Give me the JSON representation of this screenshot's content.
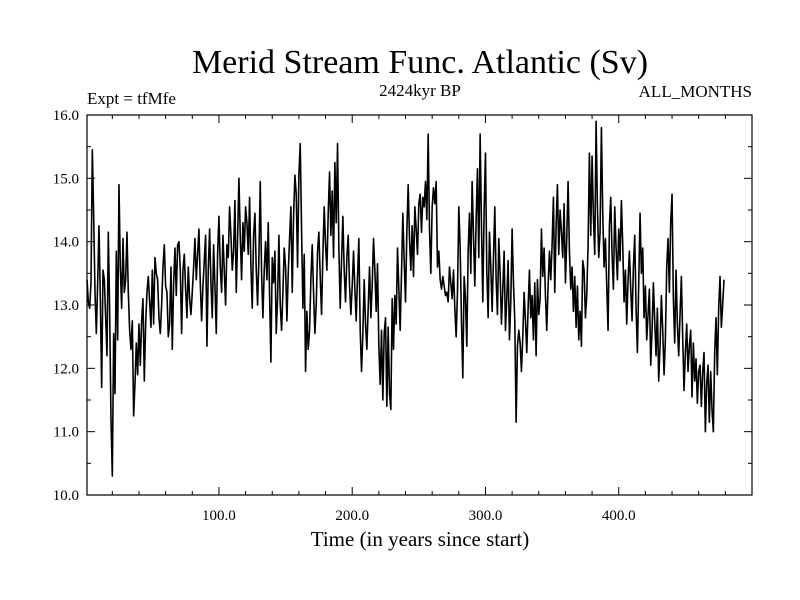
{
  "chart_data": {
    "type": "line",
    "title": "Merid Stream Func. Atlantic (Sv)",
    "subtitle_left": "Expt = tfMfe",
    "subtitle_center": "2424kyr BP",
    "subtitle_right": "ALL_MONTHS",
    "xlabel": "Time (in years since start)",
    "ylabel": "",
    "xlim": [
      1,
      500
    ],
    "ylim": [
      10.0,
      16.0
    ],
    "x_ticks": [
      100,
      200,
      300,
      400
    ],
    "x_tick_labels": [
      "100.0",
      "200.0",
      "300.0",
      "400.0"
    ],
    "y_ticks": [
      10,
      11,
      12,
      13,
      14,
      15,
      16
    ],
    "y_tick_labels": [
      "10.0",
      "11.0",
      "12.0",
      "13.0",
      "14.0",
      "15.0",
      "16.0"
    ],
    "grid": false,
    "legend": "none",
    "series": [
      {
        "name": "Merid Stream Func. Atlantic",
        "x_start": 1,
        "x_step": 1,
        "values": [
          13.4,
          13.05,
          12.95,
          13.35,
          15.45,
          14.42,
          13.2,
          12.55,
          13.35,
          14.25,
          13.1,
          11.7,
          13.55,
          13.4,
          12.8,
          12.2,
          14.15,
          12.9,
          11.2,
          10.3,
          12.55,
          11.6,
          13.85,
          12.45,
          14.9,
          13.6,
          12.95,
          14.05,
          13.2,
          13.4,
          14.15,
          13.2,
          12.6,
          12.3,
          12.75,
          11.25,
          11.75,
          12.4,
          11.9,
          12.7,
          12.05,
          12.75,
          13.1,
          11.8,
          12.7,
          13.2,
          13.45,
          13.05,
          12.65,
          13.55,
          12.7,
          13.75,
          13.5,
          13.4,
          12.8,
          12.55,
          13.0,
          13.6,
          13.95,
          13.3,
          13.2,
          12.5,
          12.7,
          13.6,
          12.3,
          13.35,
          13.9,
          13.15,
          13.95,
          14.0,
          13.55,
          12.55,
          13.55,
          13.8,
          13.25,
          12.8,
          13.6,
          13.1,
          12.85,
          13.2,
          13.6,
          14.05,
          13.4,
          13.8,
          14.2,
          13.35,
          12.75,
          13.3,
          13.7,
          14.1,
          12.35,
          13.55,
          14.2,
          13.35,
          12.8,
          13.95,
          13.3,
          12.55,
          13.8,
          14.4,
          13.6,
          13.2,
          14.1,
          13.55,
          13.0,
          13.95,
          13.75,
          14.55,
          14.1,
          13.55,
          13.85,
          14.65,
          13.2,
          14.05,
          15.0,
          14.1,
          13.4,
          14.3,
          13.85,
          14.55,
          14.3,
          13.8,
          14.7,
          13.6,
          12.95,
          14.1,
          14.45,
          13.55,
          13.0,
          13.75,
          14.95,
          13.5,
          12.8,
          13.55,
          14.0,
          13.4,
          14.3,
          13.15,
          12.1,
          13.75,
          13.35,
          13.85,
          12.55,
          13.1,
          14.1,
          13.0,
          12.6,
          13.2,
          13.9,
          13.6,
          12.75,
          13.5,
          14.05,
          14.55,
          13.2,
          14.4,
          15.05,
          14.75,
          13.6,
          15.05,
          15.55,
          14.2,
          12.95,
          13.8,
          11.95,
          12.9,
          12.3,
          12.6,
          13.4,
          13.95,
          13.2,
          12.55,
          13.0,
          13.85,
          14.15,
          13.45,
          12.85,
          13.8,
          14.55,
          13.95,
          13.55,
          14.45,
          15.1,
          14.1,
          14.8,
          13.75,
          15.25,
          14.3,
          15.55,
          13.9,
          12.95,
          13.7,
          14.4,
          13.55,
          13.05,
          13.75,
          14.1,
          13.3,
          12.85,
          13.3,
          13.85,
          13.25,
          12.75,
          13.45,
          14.05,
          12.6,
          11.95,
          12.55,
          13.4,
          12.7,
          12.3,
          12.95,
          13.6,
          12.8,
          13.3,
          14.05,
          13.55,
          12.9,
          13.65,
          12.35,
          11.75,
          12.6,
          11.5,
          12.55,
          12.8,
          11.4,
          12.65,
          11.6,
          11.35,
          13.1,
          12.3,
          13.15,
          12.7,
          13.9,
          13.25,
          12.6,
          13.5,
          14.45,
          13.7,
          13.05,
          14.15,
          14.9,
          14.05,
          13.55,
          14.25,
          13.45,
          14.55,
          14.2,
          13.8,
          14.6,
          14.75,
          14.15,
          14.7,
          14.55,
          14.95,
          14.35,
          15.7,
          14.2,
          13.5,
          14.55,
          14.85,
          14.6,
          14.95,
          13.6,
          13.85,
          13.4,
          13.25,
          13.45,
          13.3,
          13.15,
          13.2,
          13.05,
          13.6,
          13.35,
          13.1,
          13.55,
          12.95,
          12.5,
          13.2,
          14.55,
          13.9,
          12.75,
          11.85,
          13.45,
          13.1,
          12.35,
          13.85,
          14.45,
          13.5,
          14.95,
          14.1,
          13.3,
          14.35,
          15.15,
          13.75,
          15.7,
          14.25,
          13.05,
          14.5,
          15.4,
          13.55,
          12.8,
          14.15,
          13.6,
          12.9,
          13.75,
          14.55,
          13.4,
          12.85,
          14.05,
          13.5,
          12.7,
          13.25,
          13.85,
          12.6,
          13.1,
          13.7,
          12.45,
          13.05,
          14.2,
          13.35,
          12.75,
          11.15,
          12.35,
          12.6,
          12.4,
          11.95,
          12.5,
          13.2,
          12.75,
          12.25,
          12.95,
          13.55,
          12.8,
          13.15,
          12.45,
          13.35,
          12.2,
          13.4,
          12.85,
          13.1,
          14.2,
          13.45,
          13.9,
          13.15,
          12.6,
          13.3,
          13.85,
          13.4,
          13.95,
          14.7,
          13.2,
          14.25,
          14.9,
          13.8,
          14.5,
          14.15,
          13.75,
          14.6,
          13.35,
          14.05,
          14.95,
          13.85,
          13.25,
          13.6,
          12.9,
          13.45,
          12.65,
          13.3,
          12.45,
          12.9,
          12.35,
          13.7,
          13.55,
          12.8,
          13.15,
          13.95,
          15.4,
          14.1,
          15.35,
          14.4,
          13.8,
          15.9,
          14.55,
          13.75,
          14.15,
          15.8,
          14.45,
          13.6,
          14.05,
          13.3,
          12.6,
          14.25,
          14.7,
          13.8,
          13.25,
          14.55,
          13.9,
          13.4,
          14.2,
          13.7,
          14.65,
          13.95,
          13.05,
          13.55,
          12.7,
          13.4,
          13.85,
          13.25,
          12.75,
          13.6,
          14.1,
          12.95,
          12.25,
          13.35,
          14.45,
          13.5,
          13.9,
          12.8,
          13.3,
          12.45,
          12.85,
          13.25,
          12.05,
          12.6,
          13.35,
          12.75,
          12.2,
          12.95,
          11.8,
          12.35,
          13.15,
          12.6,
          11.9,
          12.45,
          13.6,
          14.05,
          13.2,
          14.3,
          14.75,
          13.1,
          12.4,
          13.55,
          12.7,
          12.2,
          12.85,
          13.45,
          12.5,
          11.65,
          12.25,
          12.7,
          11.95,
          12.35,
          12.6,
          11.55,
          12.4,
          11.8,
          12.15,
          11.45,
          11.95,
          12.05,
          11.4,
          11.95,
          12.25,
          11.0,
          11.75,
          12.05,
          11.15,
          11.95,
          11.35,
          11.0,
          12.25,
          12.8,
          11.9,
          12.95,
          13.45,
          12.65,
          13.0,
          13.4
        ]
      }
    ]
  }
}
